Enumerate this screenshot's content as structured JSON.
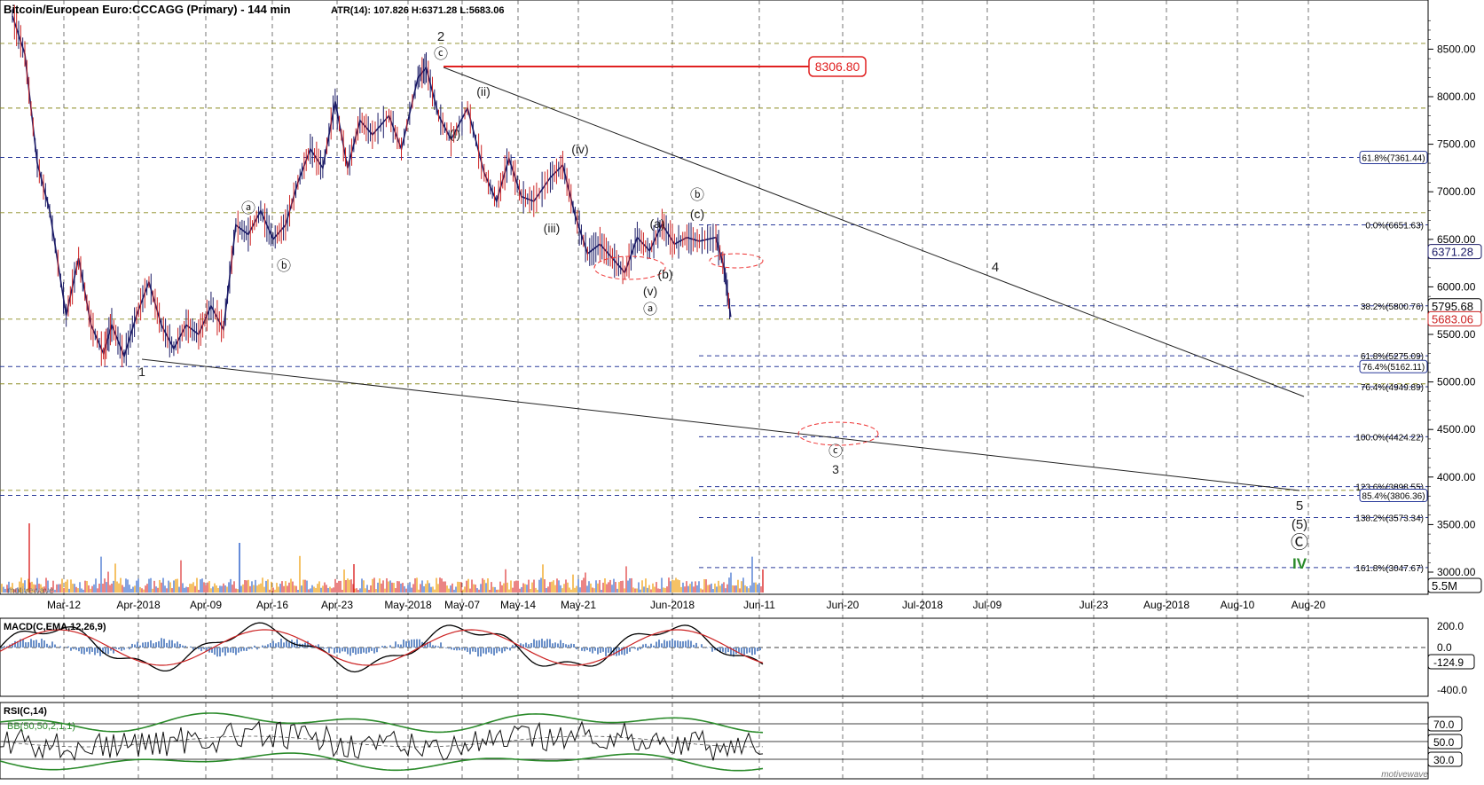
{
  "header": {
    "title": "Bitcoin/European Euro:CCCAGG (Primary) - 144 min",
    "stats": "ATR(14): 107.826  H:6371.28  L:5683.06"
  },
  "watermark": "motivewave",
  "chart_data": {
    "type": "line",
    "price_axis": {
      "ylim": [
        2900,
        8900
      ],
      "ticks": [
        3000,
        3500,
        4000,
        4500,
        5000,
        5500,
        6000,
        6500,
        7000,
        7500,
        8000,
        8500
      ],
      "tick_labels": [
        "3000.00",
        "3500.00",
        "4000.00",
        "4500.00",
        "5000.00",
        "5500.00",
        "6000.00",
        "6500.00",
        "7000.00",
        "7500.00",
        "8000.00",
        "8500.00"
      ],
      "volume_label": "5.5M"
    },
    "x_axis": {
      "labels": [
        "Mar-12",
        "Apr-2018",
        "Apr-09",
        "Apr-16",
        "Apr-23",
        "May-2018",
        "May-07",
        "May-14",
        "May-21",
        "Jun-2018",
        "Jun-11",
        "Jun-20",
        "Jul-2018",
        "Jul-09",
        "Jul-23",
        "Aug-2018",
        "Aug-10",
        "Aug-20"
      ]
    },
    "price_series": [
      {
        "t": 0,
        "v": 8850
      },
      {
        "t": 1.5,
        "v": 8450
      },
      {
        "t": 3,
        "v": 7300
      },
      {
        "t": 4.5,
        "v": 6800
      },
      {
        "t": 6.5,
        "v": 5700
      },
      {
        "t": 8,
        "v": 6300
      },
      {
        "t": 9.5,
        "v": 5600
      },
      {
        "t": 11,
        "v": 5300
      },
      {
        "t": 12,
        "v": 5600
      },
      {
        "t": 13.5,
        "v": 5270
      },
      {
        "t": 15,
        "v": 5700
      },
      {
        "t": 16.5,
        "v": 6050
      },
      {
        "t": 18,
        "v": 5600
      },
      {
        "t": 19.5,
        "v": 5350
      },
      {
        "t": 21,
        "v": 5600
      },
      {
        "t": 22.5,
        "v": 5500
      },
      {
        "t": 24,
        "v": 5800
      },
      {
        "t": 25.5,
        "v": 5550
      },
      {
        "t": 27,
        "v": 6650
      },
      {
        "t": 28.5,
        "v": 6550
      },
      {
        "t": 30,
        "v": 6800
      },
      {
        "t": 31.5,
        "v": 6500
      },
      {
        "t": 33,
        "v": 6650
      },
      {
        "t": 34.5,
        "v": 7100
      },
      {
        "t": 36,
        "v": 7450
      },
      {
        "t": 37.5,
        "v": 7250
      },
      {
        "t": 39,
        "v": 7950
      },
      {
        "t": 40.5,
        "v": 7250
      },
      {
        "t": 42,
        "v": 7750
      },
      {
        "t": 43.5,
        "v": 7600
      },
      {
        "t": 45.5,
        "v": 7800
      },
      {
        "t": 47,
        "v": 7450
      },
      {
        "t": 49,
        "v": 8200
      },
      {
        "t": 50,
        "v": 8306
      },
      {
        "t": 51.5,
        "v": 7800
      },
      {
        "t": 53,
        "v": 7550
      },
      {
        "t": 55,
        "v": 7880
      },
      {
        "t": 57,
        "v": 7200
      },
      {
        "t": 58.5,
        "v": 6900
      },
      {
        "t": 60,
        "v": 7350
      },
      {
        "t": 61.5,
        "v": 6950
      },
      {
        "t": 63,
        "v": 6900
      },
      {
        "t": 65,
        "v": 7150
      },
      {
        "t": 66.5,
        "v": 7280
      },
      {
        "t": 68,
        "v": 6750
      },
      {
        "t": 69.5,
        "v": 6350
      },
      {
        "t": 71,
        "v": 6450
      },
      {
        "t": 72.5,
        "v": 6300
      },
      {
        "t": 74,
        "v": 6150
      },
      {
        "t": 75.5,
        "v": 6520
      },
      {
        "t": 77,
        "v": 6380
      },
      {
        "t": 78.5,
        "v": 6660
      },
      {
        "t": 80,
        "v": 6450
      },
      {
        "t": 81.5,
        "v": 6520
      },
      {
        "t": 83,
        "v": 6480
      },
      {
        "t": 85,
        "v": 6520
      },
      {
        "t": 86,
        "v": 6200
      },
      {
        "t": 86.8,
        "v": 5683
      }
    ],
    "indicator": {
      "name": "ATR(14)",
      "value": 107.826,
      "high": 6371.28,
      "low": 5683.06
    },
    "price_labels": {
      "current": "6371.28",
      "last": "5683.06",
      "fib_382_tag": "5795.68"
    },
    "peak_label": "8306.80",
    "fib_levels": [
      {
        "price": 7361.44,
        "label": "61.8%(7361.44)",
        "boxed": true
      },
      {
        "price": 6651.63,
        "label": "0.0%(6651.63)",
        "boxed": false
      },
      {
        "price": 5800.76,
        "label": "38.2%(5800.76)",
        "boxed": false
      },
      {
        "price": 5275.09,
        "label": "61.8%(5275.09)",
        "boxed": false
      },
      {
        "price": 5162.11,
        "label": "76.4%(5162.11)",
        "boxed": true
      },
      {
        "price": 4949.89,
        "label": "76.4%(4949.89)",
        "boxed": false
      },
      {
        "price": 4424.22,
        "label": "100.0%(4424.22)",
        "boxed": false
      },
      {
        "price": 3898.55,
        "label": "123.6%(3898.55)",
        "boxed": false
      },
      {
        "price": 3806.36,
        "label": "85.4%(3806.36)",
        "boxed": true
      },
      {
        "price": 3573.34,
        "label": "138.2%(3573.34)",
        "boxed": false
      },
      {
        "price": 3047.67,
        "label": "161.8%(3047.67)",
        "boxed": false
      }
    ],
    "olive_levels": [
      8560,
      7880,
      6780,
      5660,
      4980,
      3860
    ],
    "wave_labels": [
      "2",
      "ⓒ",
      "(ii)",
      "(i)",
      "(iv)",
      "(iii)",
      "ⓑ",
      "(c)",
      "(a)",
      "(b)",
      "(v)",
      "ⓐ",
      "ⓐ",
      "ⓑ",
      "1",
      "4",
      "ⓒ",
      "3",
      "5",
      "(5)",
      "Ⓒ",
      "IV"
    ],
    "macd": {
      "title": "MACD(C,EMA,12,26,9)",
      "ticks": [
        "200.0",
        "0.0",
        "-400.0"
      ],
      "value_tag": "-124.9"
    },
    "rsi": {
      "title": "RSI(C,14)",
      "bb_label": "BB(50,50,2,1,1)",
      "ticks": [
        "70.0",
        "50.0",
        "30.0"
      ]
    }
  }
}
